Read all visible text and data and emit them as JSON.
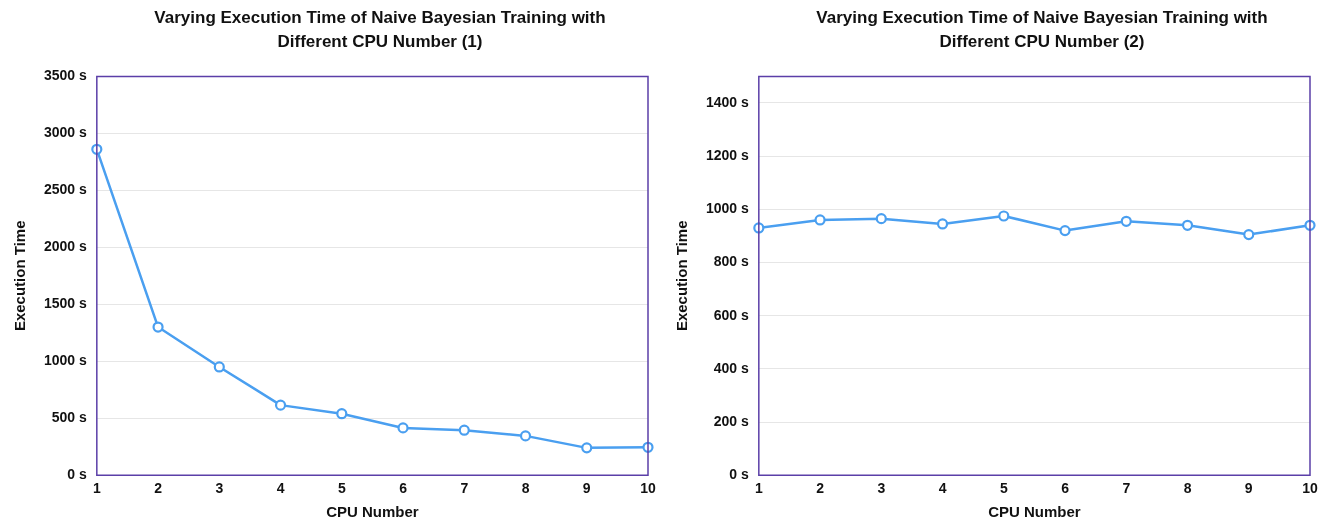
{
  "chart_data": [
    {
      "type": "line",
      "title": "Varying Execution Time of Naive Bayesian Training with Different CPU Number (1)",
      "xlabel": "CPU Number",
      "ylabel": "Execution Time",
      "categories": [
        "1",
        "2",
        "3",
        "4",
        "5",
        "6",
        "7",
        "8",
        "9",
        "10"
      ],
      "series": [
        {
          "color": "#4a9ff0",
          "values": [
            2860,
            1300,
            950,
            615,
            540,
            415,
            395,
            345,
            240,
            245
          ]
        }
      ],
      "ylim": [
        0,
        3500
      ],
      "yticks": [
        {
          "value": 0,
          "label": "0 s"
        },
        {
          "value": 500,
          "label": "500 s"
        },
        {
          "value": 1000,
          "label": "1000 s"
        },
        {
          "value": 1500,
          "label": "1500 s"
        },
        {
          "value": 2000,
          "label": "2000 s"
        },
        {
          "value": 2500,
          "label": "2500 s"
        },
        {
          "value": 3000,
          "label": "3000 s"
        },
        {
          "value": 3500,
          "label": "3500 s"
        }
      ],
      "grid": "y",
      "legend": false,
      "marker": "circle",
      "line_style": "solid"
    },
    {
      "type": "line",
      "title": "Varying Execution Time of Naive Bayesian Training with Different CPU Number (2)",
      "xlabel": "CPU Number",
      "ylabel": "Execution Time",
      "categories": [
        "1",
        "2",
        "3",
        "4",
        "5",
        "6",
        "7",
        "8",
        "9",
        "10"
      ],
      "series": [
        {
          "color": "#4a9ff0",
          "values": [
            930,
            960,
            965,
            945,
            975,
            920,
            955,
            940,
            905,
            940
          ]
        }
      ],
      "ylim": [
        0,
        1500
      ],
      "yticks": [
        {
          "value": 0,
          "label": "0 s"
        },
        {
          "value": 200,
          "label": "200 s"
        },
        {
          "value": 400,
          "label": "400 s"
        },
        {
          "value": 600,
          "label": "600 s"
        },
        {
          "value": 800,
          "label": "800 s"
        },
        {
          "value": 1000,
          "label": "1000 s"
        },
        {
          "value": 1200,
          "label": "1200 s"
        },
        {
          "value": 1400,
          "label": "1400 s"
        }
      ],
      "grid": "y",
      "legend": false,
      "marker": "circle",
      "line_style": "solid"
    }
  ]
}
